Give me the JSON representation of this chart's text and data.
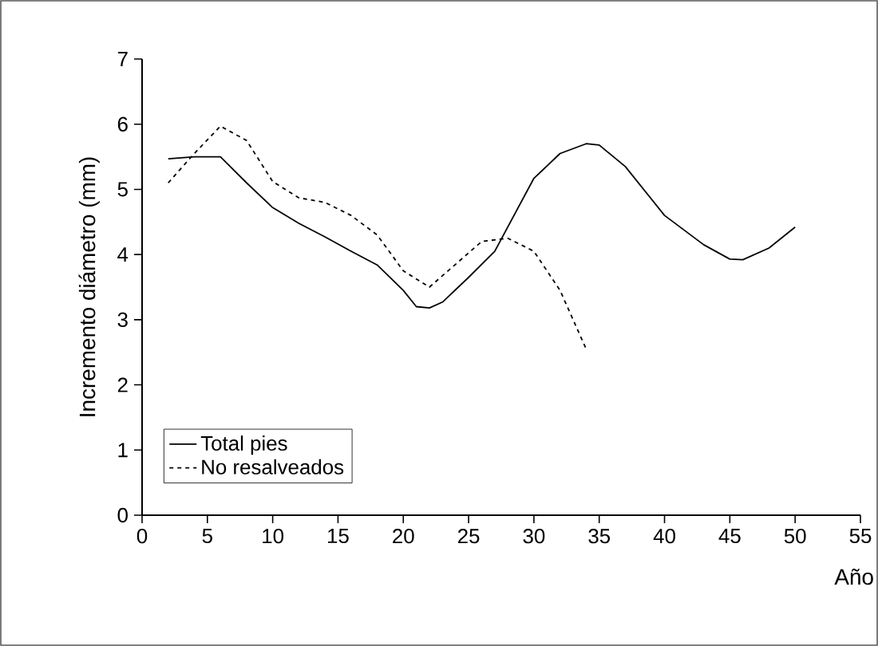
{
  "chart_data": {
    "type": "line",
    "xlabel": "Año",
    "ylabel": "Incremento diámetro (mm)",
    "xlim": [
      0,
      55
    ],
    "xticks": [
      0,
      5,
      10,
      15,
      20,
      25,
      30,
      35,
      40,
      45,
      50,
      55
    ],
    "ylim": [
      0,
      7
    ],
    "yticks": [
      0,
      1,
      2,
      3,
      4,
      5,
      6,
      7
    ],
    "grid": false,
    "legend": "bottom left",
    "marker": "none",
    "series": [
      {
        "name": "Total pies",
        "color": "#000000",
        "line_style": "solid",
        "x": [
          2,
          4,
          6,
          8,
          10,
          12,
          14,
          16,
          18,
          20,
          21,
          22,
          23,
          25,
          27,
          30,
          32,
          34,
          35,
          37,
          40,
          43,
          45,
          46,
          48,
          50
        ],
        "values": [
          5.47,
          5.5,
          5.5,
          5.1,
          4.72,
          4.48,
          4.27,
          4.05,
          3.84,
          3.45,
          3.2,
          3.18,
          3.27,
          3.65,
          4.05,
          5.17,
          5.55,
          5.7,
          5.68,
          5.35,
          4.6,
          4.15,
          3.93,
          3.92,
          4.1,
          4.42
        ]
      },
      {
        "name": "No resalveados",
        "color": "#000000",
        "line_style": "dashed",
        "x": [
          2,
          4,
          6,
          8,
          10,
          12,
          14,
          16,
          18,
          20,
          22,
          24,
          26,
          28,
          30,
          32,
          34
        ],
        "values": [
          5.1,
          5.55,
          5.97,
          5.75,
          5.12,
          4.87,
          4.8,
          4.6,
          4.3,
          3.75,
          3.5,
          3.85,
          4.2,
          4.25,
          4.05,
          3.45,
          2.55
        ]
      }
    ]
  }
}
